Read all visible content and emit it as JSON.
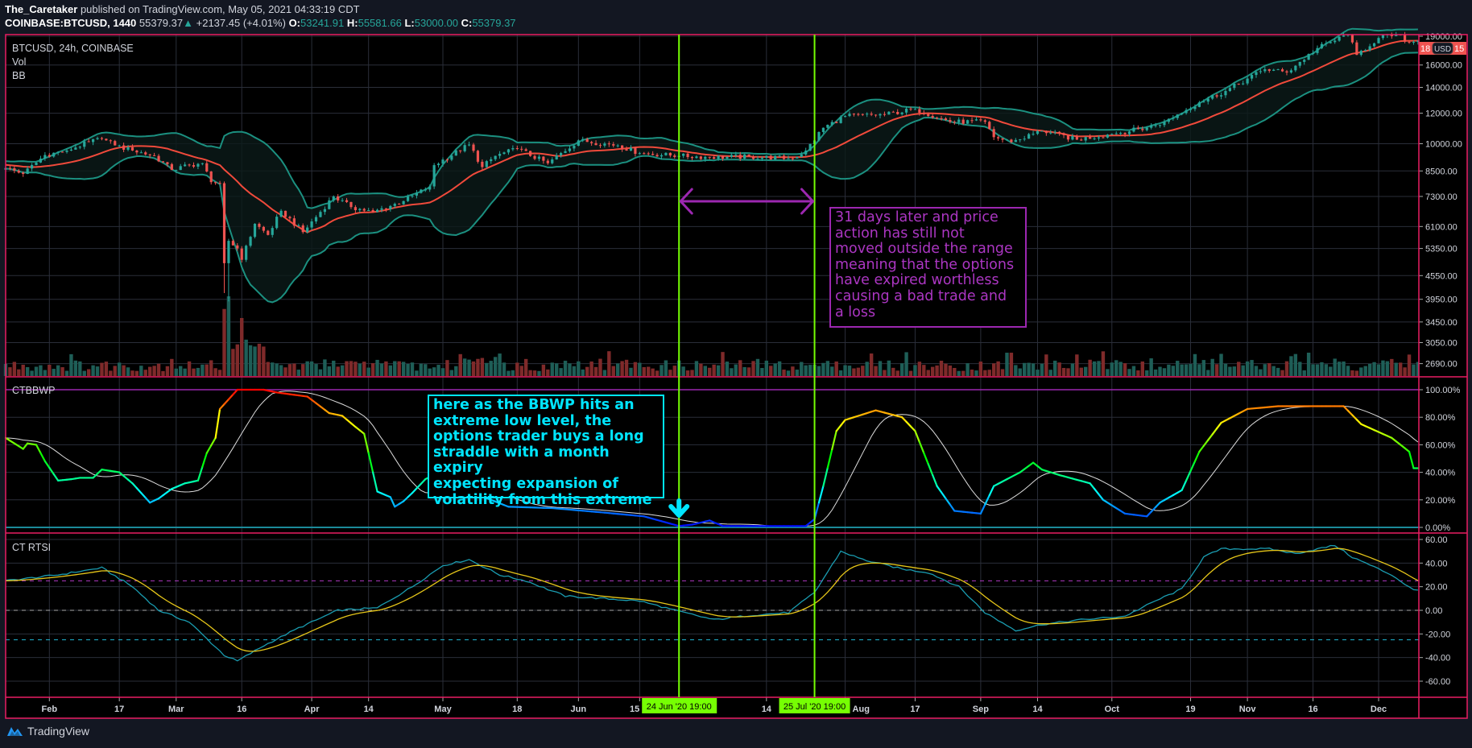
{
  "header": {
    "author": "The_Caretaker",
    "published": "published on TradingView.com, May 05, 2021 04:33:19 CDT",
    "symbol": "COINBASE:BTCUSD, 1440",
    "last": "55379.37",
    "change": "+2137.45 (+4.01%)",
    "o_label": "O:",
    "o": "53241.91",
    "h_label": "H:",
    "h": "55581.66",
    "l_label": "L:",
    "l": "53000.00",
    "c_label": "C:",
    "c": "55379.37"
  },
  "legend": {
    "main": "BTCUSD, 24h, COINBASE",
    "vol": "Vol",
    "bb": "BB",
    "bbwp": "CTBBWP",
    "rtsi": "CT RTSI"
  },
  "price_badge": {
    "left": "18",
    "right": "15",
    "currency": "USD"
  },
  "annotations": {
    "cyan_note": "here as the BBWP hits an\nextreme low level, the\noptions trader buys a long\nstraddle with a month expiry\nexpecting expansion of\nvolatility from this extreme",
    "purple_note": "31 days later and price\naction has still not\nmoved outside the range\nmeaning that the options\nhave expired worthless\ncausing a bad trade and\na loss",
    "vline_1": "24 Jun '20   19:00",
    "vline_2": "25 Jul '20   19:00",
    "vline_1_date": "2020-06-24",
    "vline_2_date": "2020-07-25"
  },
  "footer": {
    "brand": "TradingView"
  },
  "colors": {
    "up": "#26a69a",
    "down": "#ef5350",
    "bb_basis": "#f04a3b",
    "bb_band": "#1b9080",
    "frame": "#e91e63",
    "vline": "#76ff03",
    "cyan": "#00e5ff",
    "purple": "#9c27b0",
    "rtsi_fast": "#1a9cb0",
    "rtsi_slow": "#e6c619"
  },
  "chart_data": [
    {
      "type": "candlestick",
      "title": "BTCUSD, 24h, COINBASE",
      "x_start": "2020-01-22",
      "y_scale": "log",
      "ylim": [
        2550,
        19100
      ],
      "price_ticks": [
        19000,
        16000,
        14000,
        12000,
        10000,
        8500,
        7300,
        6100,
        5350,
        4550,
        3950,
        3450,
        3050,
        2690
      ],
      "price_tick_labels": [
        "19000.00",
        "16000.00",
        "14000.00",
        "12000.00",
        "10000.00",
        "8500.00",
        "7300.00",
        "6100.00",
        "5350.00",
        "4550.00",
        "3950.00",
        "3450.00",
        "3050.00",
        "2690.00"
      ],
      "close_keypoints": [
        [
          "2020-01-22",
          8650
        ],
        [
          "2020-01-26",
          8350
        ],
        [
          "2020-01-31",
          9350
        ],
        [
          "2020-02-05",
          9600
        ],
        [
          "2020-02-10",
          10100
        ],
        [
          "2020-02-13",
          10300
        ],
        [
          "2020-02-16",
          9900
        ],
        [
          "2020-02-20",
          9600
        ],
        [
          "2020-02-25",
          9300
        ],
        [
          "2020-02-29",
          8550
        ],
        [
          "2020-03-04",
          8800
        ],
        [
          "2020-03-07",
          8900
        ],
        [
          "2020-03-09",
          7950
        ],
        [
          "2020-03-11",
          7900
        ],
        [
          "2020-03-12",
          4900
        ],
        [
          "2020-03-13",
          5600
        ],
        [
          "2020-03-15",
          5350
        ],
        [
          "2020-03-16",
          5000
        ],
        [
          "2020-03-19",
          6200
        ],
        [
          "2020-03-22",
          5800
        ],
        [
          "2020-03-25",
          6700
        ],
        [
          "2020-03-30",
          5900
        ],
        [
          "2020-04-06",
          7300
        ],
        [
          "2020-04-10",
          6850
        ],
        [
          "2020-04-15",
          6650
        ],
        [
          "2020-04-22",
          7100
        ],
        [
          "2020-04-28",
          7750
        ],
        [
          "2020-04-29",
          8800
        ],
        [
          "2020-05-07",
          9950
        ],
        [
          "2020-05-10",
          8700
        ],
        [
          "2020-05-13",
          9300
        ],
        [
          "2020-05-18",
          9700
        ],
        [
          "2020-05-25",
          8900
        ],
        [
          "2020-06-01",
          10200
        ],
        [
          "2020-06-10",
          9900
        ],
        [
          "2020-06-15",
          9450
        ],
        [
          "2020-06-24",
          9300
        ],
        [
          "2020-07-01",
          9230
        ],
        [
          "2020-07-10",
          9250
        ],
        [
          "2020-07-20",
          9160
        ],
        [
          "2020-07-23",
          9600
        ],
        [
          "2020-07-27",
          11000
        ],
        [
          "2020-08-01",
          11800
        ],
        [
          "2020-08-10",
          11900
        ],
        [
          "2020-08-17",
          12300
        ],
        [
          "2020-08-25",
          11400
        ],
        [
          "2020-09-02",
          11400
        ],
        [
          "2020-09-04",
          10400
        ],
        [
          "2020-09-08",
          10100
        ],
        [
          "2020-09-15",
          10800
        ],
        [
          "2020-09-23",
          10250
        ],
        [
          "2020-10-01",
          10600
        ],
        [
          "2020-10-09",
          11000
        ],
        [
          "2020-10-13",
          11400
        ],
        [
          "2020-10-21",
          12800
        ],
        [
          "2020-10-27",
          13700
        ],
        [
          "2020-11-05",
          15600
        ],
        [
          "2020-11-10",
          15300
        ],
        [
          "2020-11-17",
          17700
        ],
        [
          "2020-11-24",
          19200
        ],
        [
          "2020-11-26",
          17000
        ],
        [
          "2020-12-01",
          18800
        ],
        [
          "2020-12-05",
          19200
        ],
        [
          "2020-12-08",
          18300
        ],
        [
          "2020-12-10",
          18500
        ]
      ],
      "bollinger": {
        "length": 20,
        "mult": 2
      }
    },
    {
      "type": "line",
      "title": "CTBBWP",
      "x_unit": "days since 2020-01-22",
      "ylim": [
        0,
        100
      ],
      "ticks": [
        "100.00%",
        "80.00%",
        "60.00%",
        "40.00%",
        "20.00%",
        "0.00%"
      ],
      "tick_values": [
        100,
        80,
        60,
        40,
        20,
        0
      ],
      "points": [
        [
          0,
          65
        ],
        [
          4,
          57
        ],
        [
          5,
          61
        ],
        [
          7,
          60
        ],
        [
          9,
          48
        ],
        [
          12,
          34
        ],
        [
          15,
          35
        ],
        [
          17,
          36
        ],
        [
          20,
          36
        ],
        [
          22,
          42
        ],
        [
          24,
          41
        ],
        [
          26,
          40
        ],
        [
          29,
          32
        ],
        [
          33,
          18
        ],
        [
          35,
          21
        ],
        [
          38,
          28
        ],
        [
          41,
          32
        ],
        [
          44,
          34
        ],
        [
          46,
          54
        ],
        [
          48,
          65
        ],
        [
          49,
          86
        ],
        [
          53,
          100
        ],
        [
          59,
          100
        ],
        [
          62,
          98
        ],
        [
          69,
          95
        ],
        [
          74,
          83
        ],
        [
          77,
          81
        ],
        [
          80,
          73
        ],
        [
          82,
          68
        ],
        [
          85,
          26
        ],
        [
          88,
          22
        ],
        [
          89,
          15
        ],
        [
          91,
          19
        ],
        [
          93,
          25
        ],
        [
          96,
          35
        ],
        [
          99,
          40
        ],
        [
          107,
          25
        ],
        [
          115,
          15
        ],
        [
          125,
          14
        ],
        [
          136,
          11
        ],
        [
          146,
          8
        ],
        [
          154,
          1
        ],
        [
          157,
          2
        ],
        [
          161,
          5
        ],
        [
          164,
          1
        ],
        [
          183,
          1
        ],
        [
          185,
          6
        ],
        [
          187,
          30
        ],
        [
          190,
          70
        ],
        [
          192,
          78
        ],
        [
          199,
          85
        ],
        [
          205,
          80
        ],
        [
          208,
          70
        ],
        [
          213,
          30
        ],
        [
          217,
          12
        ],
        [
          223,
          10
        ],
        [
          226,
          30
        ],
        [
          232,
          40
        ],
        [
          235,
          47
        ],
        [
          237,
          42
        ],
        [
          241,
          38
        ],
        [
          248,
          32
        ],
        [
          251,
          20
        ],
        [
          256,
          10
        ],
        [
          261,
          8
        ],
        [
          264,
          18
        ],
        [
          269,
          27
        ],
        [
          273,
          55
        ],
        [
          278,
          76
        ],
        [
          284,
          86
        ],
        [
          291,
          88
        ],
        [
          299,
          88
        ],
        [
          306,
          88
        ],
        [
          310,
          75
        ],
        [
          317,
          65
        ],
        [
          321,
          55
        ],
        [
          322,
          43
        ]
      ],
      "ma_length": 13
    },
    {
      "type": "line",
      "title": "CT RTSI",
      "x_unit": "days since 2020-01-22",
      "ylim": [
        -66,
        64
      ],
      "ticks": [
        "60.00",
        "40.00",
        "20.00",
        "0.00",
        "-20.00",
        "-40.00",
        "-60.00"
      ],
      "tick_values": [
        60,
        40,
        20,
        0,
        -20,
        -40,
        -60
      ],
      "levels": [
        25,
        0,
        -25
      ],
      "fast_points": [
        [
          0,
          25
        ],
        [
          12,
          30
        ],
        [
          22,
          36
        ],
        [
          29,
          20
        ],
        [
          35,
          0
        ],
        [
          42,
          -10
        ],
        [
          50,
          -38
        ],
        [
          53,
          -43
        ],
        [
          59,
          -30
        ],
        [
          67,
          -15
        ],
        [
          76,
          0
        ],
        [
          85,
          2
        ],
        [
          93,
          20
        ],
        [
          100,
          38
        ],
        [
          106,
          43
        ],
        [
          113,
          30
        ],
        [
          119,
          25
        ],
        [
          128,
          12
        ],
        [
          145,
          8
        ],
        [
          153,
          0
        ],
        [
          162,
          -8
        ],
        [
          171,
          -4
        ],
        [
          179,
          -2
        ],
        [
          185,
          15
        ],
        [
          191,
          50
        ],
        [
          196,
          43
        ],
        [
          205,
          35
        ],
        [
          211,
          32
        ],
        [
          218,
          20
        ],
        [
          224,
          -2
        ],
        [
          231,
          -17
        ],
        [
          237,
          -12
        ],
        [
          246,
          -8
        ],
        [
          256,
          -5
        ],
        [
          263,
          8
        ],
        [
          269,
          18
        ],
        [
          274,
          45
        ],
        [
          278,
          52
        ],
        [
          289,
          52
        ],
        [
          295,
          48
        ],
        [
          304,
          55
        ],
        [
          308,
          45
        ],
        [
          317,
          30
        ],
        [
          322,
          17
        ]
      ]
    }
  ],
  "time_axis": [
    [
      "2020-02-01",
      "Feb"
    ],
    [
      "2020-02-17",
      "17"
    ],
    [
      "2020-03-01",
      "Mar"
    ],
    [
      "2020-03-16",
      "16"
    ],
    [
      "2020-04-01",
      "Apr"
    ],
    [
      "2020-04-14",
      "14"
    ],
    [
      "2020-05-01",
      "May"
    ],
    [
      "2020-05-18",
      "18"
    ],
    [
      "2020-06-01",
      "Jun"
    ],
    [
      "2020-06-15",
      "15"
    ],
    [
      "2020-07-14",
      "14"
    ],
    [
      "2020-08-01",
      "Aug"
    ],
    [
      "2020-08-17",
      "17"
    ],
    [
      "2020-09-01",
      "Sep"
    ],
    [
      "2020-09-14",
      "14"
    ],
    [
      "2020-10-01",
      "Oct"
    ],
    [
      "2020-10-19",
      "19"
    ],
    [
      "2020-11-01",
      "Nov"
    ],
    [
      "2020-11-16",
      "16"
    ],
    [
      "2020-12-01",
      "Dec"
    ]
  ]
}
